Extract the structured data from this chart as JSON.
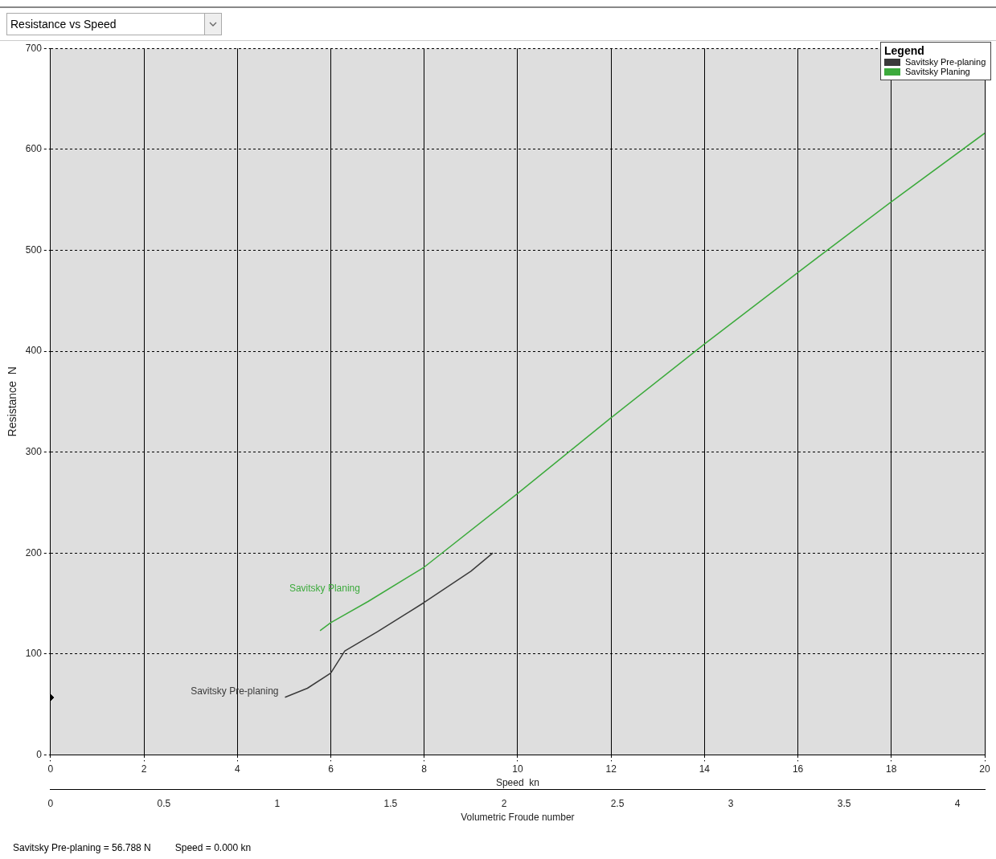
{
  "chart_data": {
    "type": "line",
    "title": "Resistance vs Speed",
    "xlabel": "Speed  kn",
    "ylabel": "Resistance  N",
    "x2label": "Volumetric Froude number",
    "legend_title": "Legend",
    "legend": "top right",
    "grid": true,
    "line_style": "solid",
    "marker": "none",
    "xlim": [
      0,
      20
    ],
    "xticks": [
      0,
      2,
      4,
      6,
      8,
      10,
      12,
      14,
      16,
      18,
      20
    ],
    "x2lim": [
      0,
      4.12
    ],
    "x2ticks": [
      0,
      0.5,
      1,
      1.5,
      2,
      2.5,
      3,
      3.5,
      4
    ],
    "ylim": [
      0,
      700
    ],
    "yticks": [
      0,
      100,
      200,
      300,
      400,
      500,
      600,
      700
    ],
    "series": [
      {
        "name": "Savitsky Pre-planing",
        "color": "#3a3a3a",
        "x": [
          5.02,
          5.5,
          6,
          6.3,
          7,
          8,
          9,
          9.47
        ],
        "values": [
          57,
          66,
          81,
          103,
          122,
          151,
          182,
          200
        ]
      },
      {
        "name": "Savitsky Planing",
        "color": "#3caa3c",
        "x": [
          5.77,
          6,
          6.8,
          8,
          10,
          12,
          14,
          16,
          18,
          20
        ],
        "values": [
          123,
          131,
          152,
          186,
          259,
          334,
          407,
          478,
          548,
          616
        ]
      },
      {
        "type": "scatter",
        "marker": "diamond",
        "color": "#000000",
        "x": [
          0
        ],
        "values": [
          56.788
        ]
      }
    ],
    "annotations": [
      "Savitsky Pre-planing = 56.788 N",
      "Speed = 0.000 kn"
    ]
  }
}
